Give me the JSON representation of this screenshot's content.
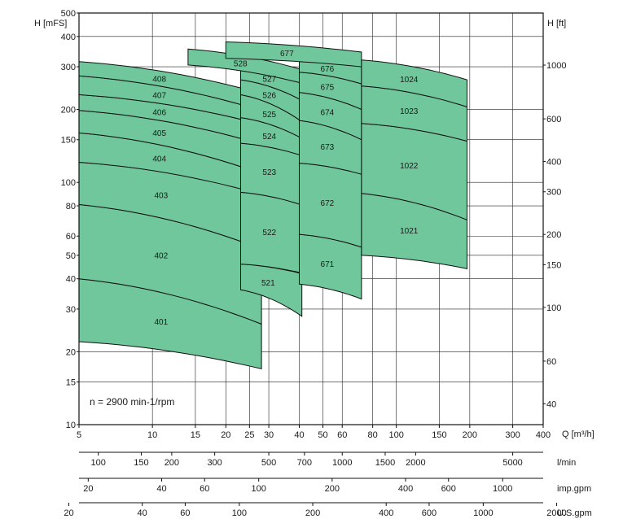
{
  "chart_data": {
    "type": "area",
    "title": "",
    "note": "n = 2900 min-1/rpm",
    "colors": {
      "zone_fill": "#6fc79b",
      "zone_stroke": "#111111",
      "grid": "#222222"
    },
    "x_axis": {
      "label": "Q [m³/h]",
      "scale": "log",
      "range": [
        5,
        400
      ],
      "ticks": [
        "5",
        "10",
        "15",
        "20",
        "25",
        "30",
        "40",
        "50",
        "60",
        "80",
        "100",
        "150",
        "200",
        "300",
        "400"
      ]
    },
    "y_axis_left": {
      "label": "H [mFS]",
      "scale": "log",
      "range": [
        10,
        500
      ],
      "ticks": [
        "10",
        "15",
        "20",
        "30",
        "40",
        "50",
        "60",
        "80",
        "100",
        "150",
        "200",
        "300",
        "400",
        "500"
      ]
    },
    "y_axis_right": {
      "label": "H [ft]",
      "ticks": [
        "40",
        "60",
        "100",
        "150",
        "200",
        "300",
        "400",
        "600",
        "1000"
      ]
    },
    "secondary_x_axes": [
      {
        "unit": "l/min",
        "ticks": [
          "100",
          "150",
          "200",
          "300",
          "500",
          "700",
          "1000",
          "1500",
          "2000",
          "5000"
        ]
      },
      {
        "unit": "imp.gpm",
        "ticks": [
          "20",
          "40",
          "60",
          "100",
          "200",
          "400",
          "600",
          "1000"
        ]
      },
      {
        "unit": "U.S.gpm",
        "ticks": [
          "20",
          "40",
          "60",
          "100",
          "200",
          "400",
          "600",
          "1000",
          "2000"
        ]
      }
    ],
    "zones": [
      {
        "name": "401",
        "q": [
          5,
          28
        ],
        "h_top": [
          40,
          26
        ],
        "h_bot": [
          22,
          17
        ]
      },
      {
        "name": "402",
        "q": [
          5,
          28
        ],
        "h_top": [
          81,
          53
        ],
        "h_bot": [
          40,
          26
        ]
      },
      {
        "name": "403",
        "q": [
          5,
          28
        ],
        "h_top": [
          121,
          90
        ],
        "h_bot": [
          81,
          53
        ]
      },
      {
        "name": "404",
        "q": [
          5,
          27
        ],
        "h_top": [
          160,
          110
        ],
        "h_bot": [
          121,
          90
        ]
      },
      {
        "name": "405",
        "q": [
          5,
          27
        ],
        "h_top": [
          198,
          145
        ],
        "h_bot": [
          160,
          110
        ]
      },
      {
        "name": "406",
        "q": [
          5,
          27
        ],
        "h_top": [
          230,
          175
        ],
        "h_bot": [
          198,
          145
        ]
      },
      {
        "name": "407",
        "q": [
          5,
          27
        ],
        "h_top": [
          275,
          200
        ],
        "h_bot": [
          230,
          175
        ]
      },
      {
        "name": "408",
        "q": [
          5,
          27
        ],
        "h_top": [
          315,
          235
        ],
        "h_bot": [
          275,
          200
        ]
      },
      {
        "name": "521",
        "q": [
          23,
          41
        ],
        "h_top": [
          46,
          42
        ],
        "h_bot": [
          36,
          28
        ]
      },
      {
        "name": "522",
        "q": [
          23,
          42
        ],
        "h_top": [
          91,
          80
        ],
        "h_bot": [
          46,
          42
        ]
      },
      {
        "name": "523",
        "q": [
          23,
          42
        ],
        "h_top": [
          145,
          128
        ],
        "h_bot": [
          91,
          80
        ]
      },
      {
        "name": "524",
        "q": [
          23,
          42
        ],
        "h_top": [
          185,
          150
        ],
        "h_bot": [
          145,
          128
        ]
      },
      {
        "name": "525",
        "q": [
          23,
          42
        ],
        "h_top": [
          230,
          175
        ],
        "h_bot": [
          185,
          150
        ]
      },
      {
        "name": "526",
        "q": [
          23,
          42
        ],
        "h_top": [
          265,
          215
        ],
        "h_bot": [
          230,
          175
        ]
      },
      {
        "name": "527",
        "q": [
          23,
          42
        ],
        "h_top": [
          305,
          255
        ],
        "h_bot": [
          265,
          215
        ]
      },
      {
        "name": "528",
        "q": [
          14,
          42
        ],
        "h_top": [
          355,
          290
        ],
        "h_bot": [
          305,
          255
        ]
      },
      {
        "name": "671",
        "q": [
          40,
          72
        ],
        "h_top": [
          61,
          54
        ],
        "h_bot": [
          38,
          33
        ]
      },
      {
        "name": "672",
        "q": [
          40,
          72
        ],
        "h_top": [
          120,
          108
        ],
        "h_bot": [
          61,
          54
        ]
      },
      {
        "name": "673",
        "q": [
          40,
          72
        ],
        "h_top": [
          180,
          150
        ],
        "h_bot": [
          120,
          108
        ]
      },
      {
        "name": "674",
        "q": [
          40,
          72
        ],
        "h_top": [
          235,
          200
        ],
        "h_bot": [
          180,
          150
        ]
      },
      {
        "name": "675",
        "q": [
          40,
          72
        ],
        "h_top": [
          285,
          255
        ],
        "h_bot": [
          235,
          200
        ]
      },
      {
        "name": "676",
        "q": [
          40,
          72
        ],
        "h_top": [
          325,
          300
        ],
        "h_bot": [
          285,
          255
        ]
      },
      {
        "name": "677",
        "q": [
          20,
          72
        ],
        "h_top": [
          380,
          345
        ],
        "h_bot": [
          325,
          300
        ]
      },
      {
        "name": "1021",
        "q": [
          72,
          195
        ],
        "h_top": [
          90,
          70
        ],
        "h_bot": [
          50,
          44
        ]
      },
      {
        "name": "1022",
        "q": [
          72,
          195
        ],
        "h_top": [
          175,
          148
        ],
        "h_bot": [
          90,
          70
        ]
      },
      {
        "name": "1023",
        "q": [
          72,
          195
        ],
        "h_top": [
          250,
          205
        ],
        "h_bot": [
          175,
          148
        ]
      },
      {
        "name": "1024",
        "q": [
          72,
          195
        ],
        "h_top": [
          320,
          265
        ],
        "h_bot": [
          250,
          205
        ]
      }
    ]
  }
}
